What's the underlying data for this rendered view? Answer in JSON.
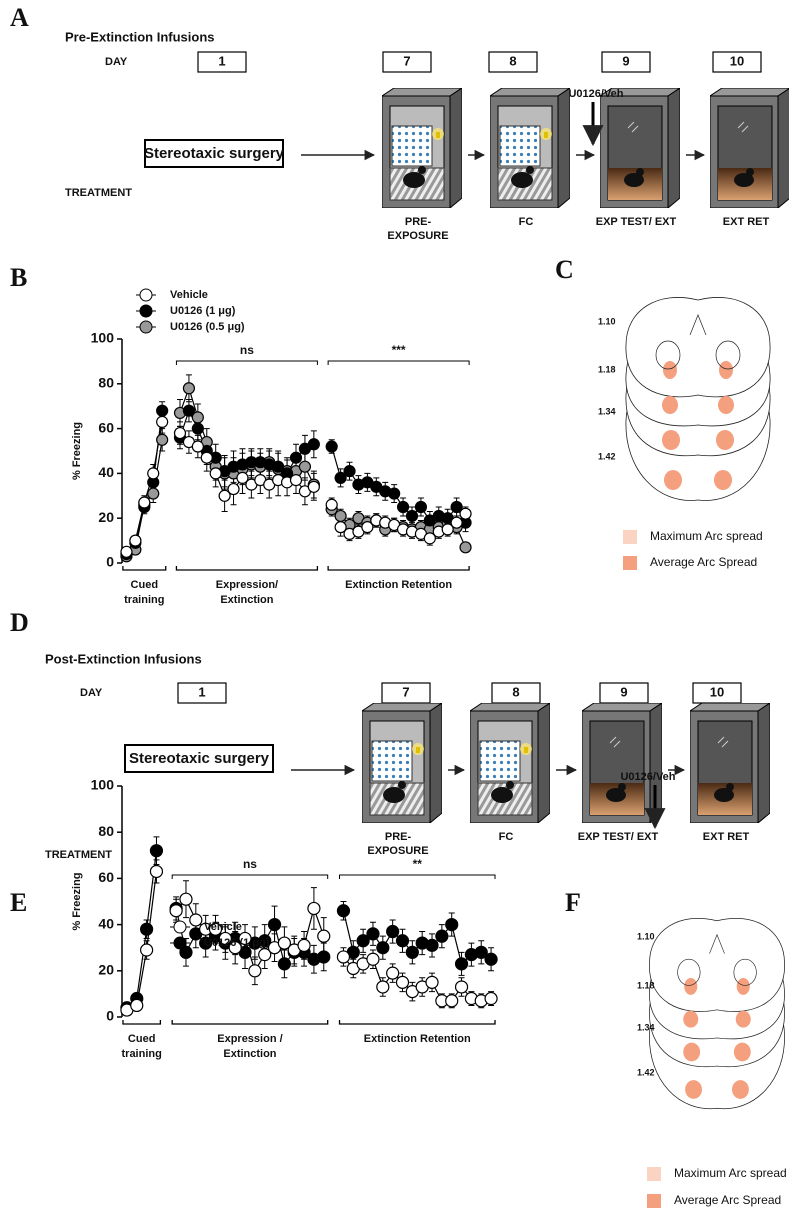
{
  "panel_a": {
    "letter": "A",
    "title": "Pre-Extinction Infusions",
    "day_label": "DAY",
    "treatment_label": "TREATMENT",
    "days": [
      "1",
      "7",
      "8",
      "9",
      "10"
    ],
    "surgery": "Stereotaxic surgery",
    "infusion": "U0126/Veh",
    "stages": [
      [
        "PRE-",
        "EXPOSURE"
      ],
      [
        "FC"
      ],
      [
        "EXP TEST/ EXT"
      ],
      [
        "EXT RET"
      ]
    ]
  },
  "panel_c": {
    "letter": "C",
    "levels": [
      "1.10",
      "1.18",
      "1.34",
      "1.42"
    ],
    "legend": [
      "Maximum Arc spread",
      "Average Arc Spread"
    ]
  },
  "panel_d": {
    "letter": "D",
    "title": "Post-Extinction Infusions",
    "day_label": "DAY",
    "treatment_label": "TREATMENT",
    "days": [
      "1",
      "7",
      "8",
      "9",
      "10"
    ],
    "surgery": "Stereotaxic surgery",
    "infusion": "U0126/Veh",
    "stages": [
      [
        "PRE-",
        "EXPOSURE"
      ],
      [
        "FC"
      ],
      [
        "EXP TEST/ EXT"
      ],
      [
        "EXT RET"
      ]
    ]
  },
  "panel_f": {
    "letter": "F",
    "levels": [
      "1.10",
      "1.18",
      "1.34",
      "1.42"
    ],
    "legend": [
      "Maximum Arc spread",
      "Average Arc Spread"
    ]
  },
  "chart_data": [
    {
      "type": "line",
      "letter": "B",
      "ylabel": "% Freezing",
      "ylim": [
        0,
        100
      ],
      "yticks": [
        0,
        20,
        40,
        60,
        80,
        100
      ],
      "categories": [
        null,
        null,
        null,
        null,
        null,
        null,
        null,
        null,
        null,
        null,
        null,
        null,
        null,
        null,
        null,
        null,
        null,
        null,
        null,
        null,
        null,
        null,
        null,
        null,
        null,
        null,
        null,
        null,
        null,
        null,
        null,
        null,
        null,
        null,
        null,
        null,
        null,
        null,
        null
      ],
      "groups": [
        [
          "Cued",
          "training"
        ],
        [
          "Expression/",
          "Extinction"
        ],
        [
          "Extinction Retention"
        ]
      ],
      "significance": [
        "ns",
        "***"
      ],
      "series": [
        {
          "name": "U0126 (0.5 μg)",
          "color": "#999999",
          "values": [
            3,
            6,
            26,
            31,
            55,
            null,
            67,
            78,
            65,
            54,
            43,
            40,
            40,
            42,
            44,
            43,
            45,
            42,
            41,
            41,
            43,
            35,
            null,
            24,
            21,
            17,
            20,
            18,
            19,
            15,
            17,
            16,
            15,
            16,
            15,
            16,
            18,
            16,
            7
          ],
          "errors": [
            1,
            2,
            3,
            4,
            5,
            null,
            6,
            6,
            6,
            6,
            6,
            7,
            7,
            7,
            6,
            6,
            6,
            7,
            6,
            6,
            6,
            6,
            null,
            3,
            3,
            3,
            3,
            3,
            3,
            3,
            3,
            3,
            3,
            3,
            3,
            3,
            3,
            3,
            2
          ]
        },
        {
          "name": "U0126 (1 μg)",
          "color": "#000000",
          "values": [
            4,
            9,
            25,
            36,
            68,
            null,
            56,
            68,
            60,
            50,
            47,
            41,
            43,
            44,
            45,
            45,
            44,
            43,
            40,
            47,
            51,
            53,
            null,
            52,
            38,
            41,
            35,
            36,
            34,
            32,
            31,
            25,
            21,
            25,
            19,
            21,
            20,
            25,
            18
          ],
          "errors": [
            1,
            2,
            3,
            4,
            4,
            null,
            5,
            5,
            5,
            6,
            6,
            7,
            7,
            7,
            6,
            6,
            6,
            7,
            6,
            6,
            6,
            6,
            null,
            3,
            4,
            4,
            4,
            4,
            4,
            4,
            4,
            4,
            4,
            4,
            4,
            4,
            4,
            4,
            4
          ]
        },
        {
          "name": "Vehicle",
          "color": "#ffffff",
          "values": [
            5,
            10,
            27,
            40,
            63,
            null,
            58,
            54,
            52,
            47,
            40,
            30,
            33,
            38,
            35,
            37,
            35,
            37,
            36,
            37,
            32,
            34,
            null,
            26,
            16,
            13,
            14,
            16,
            19,
            18,
            17,
            15,
            14,
            13,
            11,
            14,
            15,
            18,
            22
          ],
          "errors": [
            1,
            2,
            3,
            4,
            5,
            null,
            5,
            5,
            5,
            6,
            6,
            7,
            7,
            7,
            6,
            6,
            6,
            7,
            6,
            6,
            6,
            6,
            null,
            3,
            4,
            3,
            3,
            3,
            3,
            3,
            3,
            3,
            3,
            3,
            3,
            3,
            3,
            3,
            3
          ]
        }
      ]
    },
    {
      "type": "line",
      "letter": "E",
      "ylabel": "% Freezing",
      "ylim": [
        0,
        100
      ],
      "yticks": [
        0,
        20,
        40,
        60,
        80,
        100
      ],
      "categories": [
        null,
        null,
        null,
        null,
        null,
        null,
        null,
        null,
        null,
        null,
        null,
        null,
        null,
        null,
        null,
        null,
        null,
        null,
        null,
        null,
        null,
        null,
        null,
        null,
        null,
        null,
        null,
        null,
        null,
        null,
        null,
        null,
        null,
        null,
        null,
        null,
        null,
        null
      ],
      "groups": [
        [
          "Cued",
          "training"
        ],
        [
          "Expression /",
          "Extinction"
        ],
        [
          "Extinction Retention"
        ]
      ],
      "significance": [
        "ns",
        "**"
      ],
      "series": [
        {
          "name": "U0126 (1 μg)",
          "color": "#000000",
          "values": [
            4,
            8,
            38,
            72,
            null,
            47,
            28,
            36,
            32,
            35,
            32,
            34,
            28,
            32,
            33,
            40,
            23,
            28,
            28,
            25,
            26,
            null,
            46,
            28,
            33,
            36,
            30,
            37,
            33,
            28,
            32,
            31,
            35,
            40,
            23,
            27,
            28,
            25
          ],
          "errors": [
            1,
            2,
            4,
            6,
            null,
            5,
            6,
            6,
            6,
            6,
            7,
            7,
            7,
            7,
            7,
            8,
            6,
            6,
            6,
            6,
            6,
            null,
            4,
            5,
            5,
            5,
            5,
            5,
            5,
            5,
            5,
            5,
            5,
            5,
            5,
            5,
            5,
            5
          ]
        },
        {
          "name": "Vehicle",
          "color": "#ffffff",
          "values": [
            3,
            5,
            29,
            63,
            null,
            46,
            51,
            42,
            38,
            38,
            34,
            30,
            34,
            20,
            27,
            30,
            32,
            29,
            31,
            47,
            35,
            null,
            26,
            21,
            23,
            25,
            13,
            19,
            15,
            11,
            13,
            15,
            7,
            7,
            13,
            8,
            7,
            8
          ],
          "errors": [
            1,
            2,
            4,
            5,
            null,
            5,
            8,
            7,
            6,
            6,
            6,
            7,
            6,
            6,
            6,
            6,
            7,
            6,
            6,
            9,
            8,
            null,
            4,
            4,
            4,
            4,
            4,
            4,
            4,
            4,
            4,
            4,
            3,
            3,
            4,
            3,
            3,
            3
          ]
        }
      ]
    }
  ]
}
